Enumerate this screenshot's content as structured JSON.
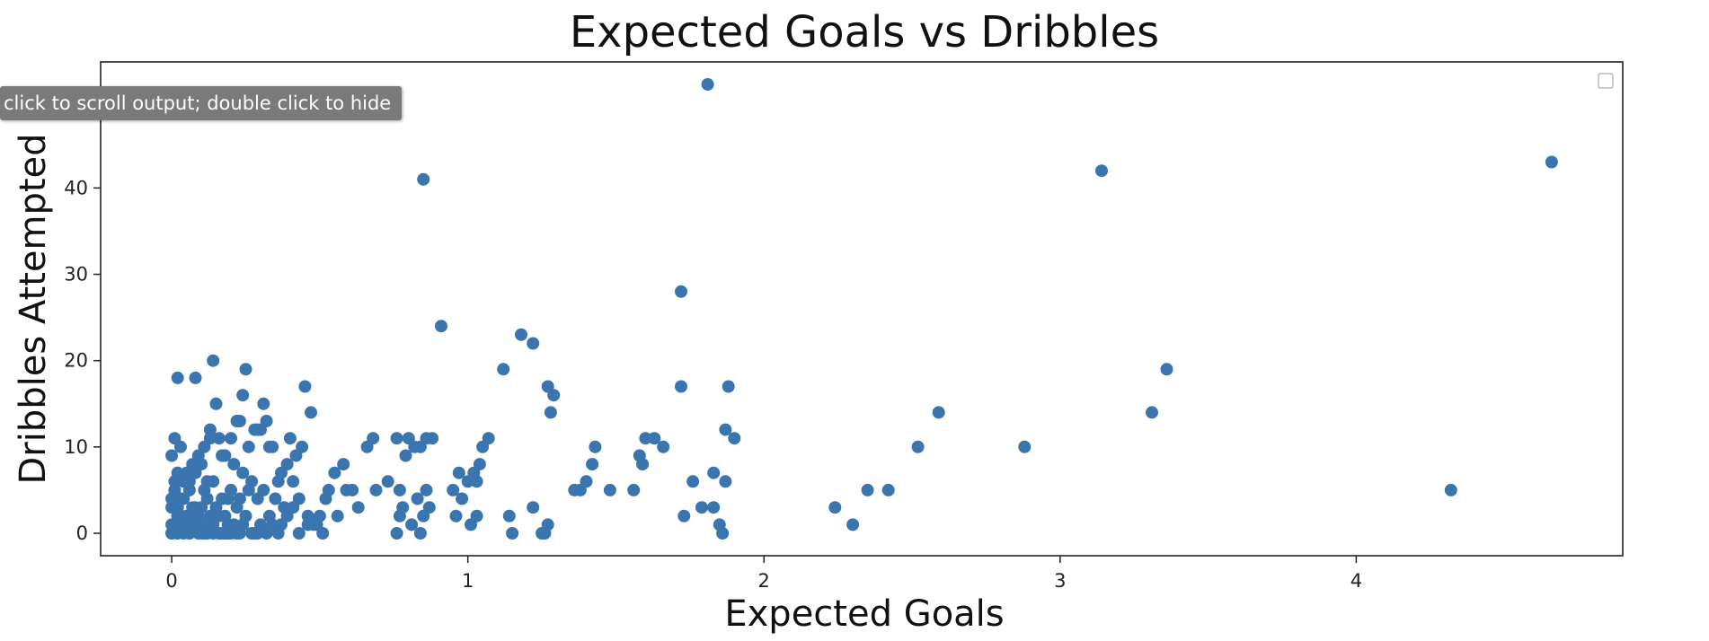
{
  "output_tooltip": "click to scroll output; double click to hide",
  "chart_data": {
    "type": "scatter",
    "title": "Expected Goals vs Dribbles",
    "xlabel": "Expected Goals",
    "ylabel": "Dribbles Attempted",
    "xlim": [
      -0.24,
      4.9
    ],
    "ylim": [
      -2.6,
      54.6
    ],
    "xticks": [
      0,
      1,
      2,
      3,
      4
    ],
    "yticks": [
      0,
      10,
      20,
      30,
      40
    ],
    "grid": false,
    "legend": "top-right (empty)",
    "point_color": "#3b75af",
    "x": [
      1.81,
      0.85,
      3.14,
      4.66,
      1.72,
      0.91,
      1.18,
      1.22,
      1.12,
      1.27,
      1.29,
      1.28,
      3.36,
      3.31,
      2.59,
      2.52,
      2.88,
      2.24,
      2.3,
      2.35,
      2.42,
      4.32,
      1.88,
      1.87,
      1.9,
      1.72,
      1.83,
      1.87,
      1.76,
      1.73,
      1.79,
      1.83,
      1.85,
      1.86,
      1.6,
      1.63,
      1.66,
      1.58,
      1.59,
      1.43,
      1.42,
      1.4,
      1.36,
      1.38,
      1.48,
      1.56,
      1.15,
      1.22,
      1.14,
      1.25,
      1.27,
      1.26,
      1.07,
      1.05,
      1.04,
      1.02,
      1.03,
      1.0,
      0.97,
      0.95,
      0.98,
      0.96,
      1.01,
      1.03,
      0.88,
      0.84,
      0.86,
      0.82,
      0.79,
      0.76,
      0.8,
      0.86,
      0.83,
      0.87,
      0.85,
      0.81,
      0.77,
      0.78,
      0.77,
      0.76,
      0.84,
      0.73,
      0.69,
      0.66,
      0.63,
      0.59,
      0.55,
      0.52,
      0.5,
      0.58,
      0.61,
      0.68,
      0.45,
      0.47,
      0.44,
      0.42,
      0.4,
      0.39,
      0.36,
      0.32,
      0.3,
      0.25,
      0.24,
      0.23,
      0.26,
      0.28,
      0.31,
      0.34,
      0.14,
      0.08,
      0.02,
      0.15,
      0.13,
      0.2,
      0.22,
      0.17,
      0.29,
      0.33,
      0.37,
      0.41,
      0.43,
      0.46,
      0.49,
      0.53,
      0.56,
      0.01,
      0.0,
      0.03,
      0.05,
      0.07,
      0.09,
      0.11,
      0.13,
      0.16,
      0.18,
      0.21,
      0.24,
      0.27,
      0.31,
      0.35,
      0.38,
      0.48,
      0.51,
      0.02,
      0.04,
      0.06,
      0.1,
      0.12,
      0.19,
      0.22,
      0.26,
      0.29,
      0.33,
      0.01,
      0.03,
      0.06,
      0.08,
      0.11,
      0.14,
      0.17,
      0.2,
      0.23,
      0.0,
      0.02,
      0.04,
      0.07,
      0.09,
      0.12,
      0.15,
      0.18,
      0.05,
      0.1,
      0.16,
      0.21,
      0.0,
      0.03,
      0.06,
      0.09,
      0.12,
      0.01,
      0.04,
      0.08,
      0.13,
      0.19,
      0.25,
      0.3,
      0.36,
      0.41,
      0.46,
      0.0,
      0.02,
      0.05,
      0.07,
      0.11,
      0.14,
      0.17,
      0.2,
      0.24,
      0.28,
      0.32,
      0.37,
      0.43,
      0.0,
      0.03,
      0.06,
      0.09,
      0.13,
      0.16,
      0.19,
      0.22,
      0.27,
      0.34,
      0.39,
      0.01,
      0.04,
      0.08,
      0.11,
      0.15,
      0.18,
      0.0,
      0.02,
      0.05,
      0.1,
      0.14,
      0.23,
      0.29,
      0.02,
      0.07,
      0.12,
      0.17,
      0.03,
      0.06
    ],
    "y": [
      52,
      41,
      42,
      43,
      28,
      24,
      23,
      22,
      19,
      17,
      16,
      14,
      19,
      14,
      14,
      10,
      10,
      3,
      1,
      5,
      5,
      5,
      17,
      12,
      11,
      17,
      7,
      6,
      6,
      2,
      3,
      3,
      1,
      0,
      11,
      11,
      10,
      9,
      8,
      10,
      8,
      6,
      5,
      5,
      5,
      5,
      0,
      3,
      2,
      0,
      1,
      0,
      11,
      10,
      8,
      7,
      6,
      6,
      7,
      5,
      4,
      2,
      1,
      2,
      11,
      10,
      11,
      10,
      9,
      11,
      11,
      5,
      4,
      3,
      2,
      1,
      5,
      3,
      2,
      0,
      0,
      6,
      5,
      10,
      3,
      5,
      7,
      4,
      2,
      8,
      5,
      11,
      17,
      14,
      10,
      9,
      11,
      8,
      6,
      13,
      12,
      19,
      16,
      13,
      10,
      12,
      15,
      10,
      20,
      18,
      18,
      15,
      11,
      11,
      13,
      9,
      12,
      10,
      7,
      6,
      4,
      2,
      1,
      5,
      2,
      11,
      9,
      10,
      7,
      8,
      9,
      10,
      12,
      11,
      9,
      8,
      7,
      6,
      5,
      4,
      3,
      1,
      0,
      7,
      6,
      5,
      8,
      6,
      4,
      3,
      5,
      4,
      2,
      5,
      4,
      6,
      7,
      5,
      6,
      4,
      5,
      4,
      3,
      2,
      1,
      3,
      2,
      4,
      3,
      2,
      1,
      3,
      2,
      1,
      0,
      1,
      2,
      0,
      1,
      3,
      0,
      2,
      1,
      0,
      2,
      1,
      0,
      3,
      1,
      0,
      0,
      1,
      2,
      0,
      1,
      0,
      0,
      1,
      0,
      0,
      1,
      0,
      4,
      2,
      0,
      1,
      2,
      0,
      1,
      0,
      0,
      1,
      2,
      6,
      4,
      3,
      1,
      2,
      0,
      1,
      3,
      2,
      0,
      0,
      0,
      0,
      2,
      1,
      0,
      0,
      1,
      0
    ]
  }
}
